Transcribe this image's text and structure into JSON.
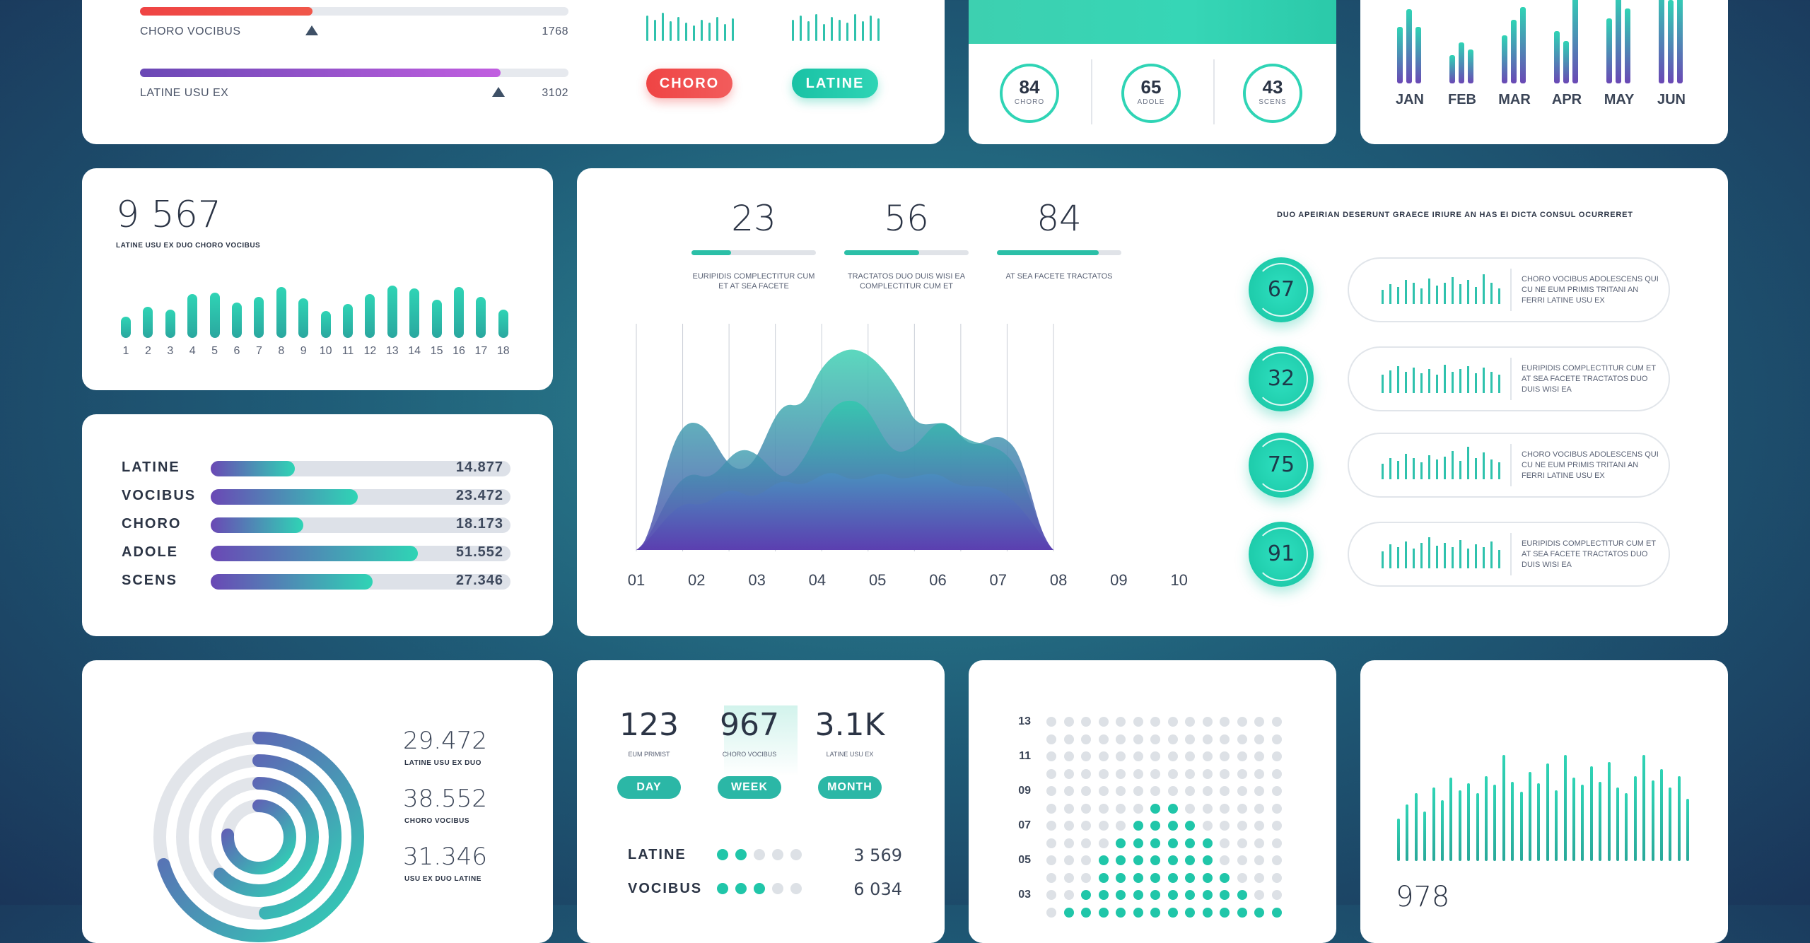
{
  "top_left": {
    "rows": [
      {
        "label": "CHORO VOCIBUS",
        "value": "1768",
        "fill": 0.4,
        "color": "#ef4444"
      },
      {
        "label": "LATINE USU EX",
        "value": "3102",
        "fill": 0.84,
        "color": "#8b5cf6"
      }
    ]
  },
  "top_mid": {
    "buttons": [
      "CHORO",
      "LATINE"
    ]
  },
  "top_stats": [
    {
      "value": "84",
      "label": "CHORO"
    },
    {
      "value": "65",
      "label": "ADOLE"
    },
    {
      "value": "43",
      "label": "SCENS"
    }
  ],
  "top_right": {
    "months": [
      "JAN",
      "FEB",
      "MAR",
      "APR",
      "MAY",
      "JUN"
    ]
  },
  "counter": {
    "value": "9 567",
    "label": "LATINE USU EX DUO CHORO VOCIBUS",
    "ticks": [
      "1",
      "2",
      "3",
      "4",
      "5",
      "6",
      "7",
      "8",
      "9",
      "10",
      "11",
      "12",
      "13",
      "14",
      "15",
      "16",
      "17",
      "18"
    ]
  },
  "hbars": [
    {
      "name": "LATINE",
      "value": "14.877",
      "fill": 0.28
    },
    {
      "name": "VOCIBUS",
      "value": "23.472",
      "fill": 0.49
    },
    {
      "name": "CHORO",
      "value": "18.173",
      "fill": 0.31
    },
    {
      "name": "ADOLE",
      "value": "51.552",
      "fill": 0.69
    },
    {
      "name": "SCENS",
      "value": "27.346",
      "fill": 0.54
    }
  ],
  "main": {
    "kpis": [
      {
        "value": "23",
        "caption": "EURIPIDIS COMPLECTITUR CUM ET AT SEA FACETE",
        "fill": 0.32
      },
      {
        "value": "56",
        "caption": "TRACTATOS DUO DUIS WISI EA COMPLECTITUR CUM ET",
        "fill": 0.6
      },
      {
        "value": "84",
        "caption": "AT SEA FACETE TRACTATOS",
        "fill": 0.82
      }
    ],
    "x_ticks": [
      "01",
      "02",
      "03",
      "04",
      "05",
      "06",
      "07",
      "08",
      "09",
      "10"
    ],
    "side_title": "DUO APEIRIAN DESERUNT GRAECE IRIURE AN HAS EI DICTA CONSUL OCURRERET",
    "side_items": [
      {
        "value": "67",
        "text": "CHORO VOCIBUS ADOLESCENS QUI CU NE EUM PRIMIS TRITANI AN FERRI LATINE USU EX"
      },
      {
        "value": "32",
        "text": "EURIPIDIS COMPLECTITUR CUM ET AT SEA FACETE TRACTATOS DUO DUIS WISI EA"
      },
      {
        "value": "75",
        "text": "CHORO VOCIBUS ADOLESCENS QUI CU NE EUM PRIMIS TRITANI AN FERRI LATINE USU EX"
      },
      {
        "value": "91",
        "text": "EURIPIDIS COMPLECTITUR CUM ET AT SEA FACETE TRACTATOS DUO DUIS WISI EA"
      }
    ]
  },
  "donut": {
    "items": [
      {
        "value": "29.472",
        "label": "LATINE USU EX DUO"
      },
      {
        "value": "38.552",
        "label": "CHORO VOCIBUS"
      },
      {
        "value": "31.346",
        "label": "USU EX DUO LATINE"
      }
    ]
  },
  "periods": {
    "stats": [
      {
        "value": "123",
        "label": "EUM PRIMIST",
        "tab": "DAY"
      },
      {
        "value": "967",
        "label": "CHORO VOCIBUS",
        "tab": "WEEK"
      },
      {
        "value": "3.1K",
        "label": "LATINE USU EX",
        "tab": "MONTH"
      }
    ],
    "rows": [
      {
        "name": "LATINE",
        "value": "3 569",
        "on": 2
      },
      {
        "name": "VOCIBUS",
        "value": "6 034",
        "on": 3
      }
    ]
  },
  "dots": {
    "y_labels": [
      "13",
      "11",
      "09",
      "07",
      "05",
      "03"
    ]
  },
  "bottom_right": {
    "value": "978"
  },
  "colors": {
    "accent": "#2fd4b5",
    "purple": "#6a48b5",
    "red": "#ef4444"
  }
}
